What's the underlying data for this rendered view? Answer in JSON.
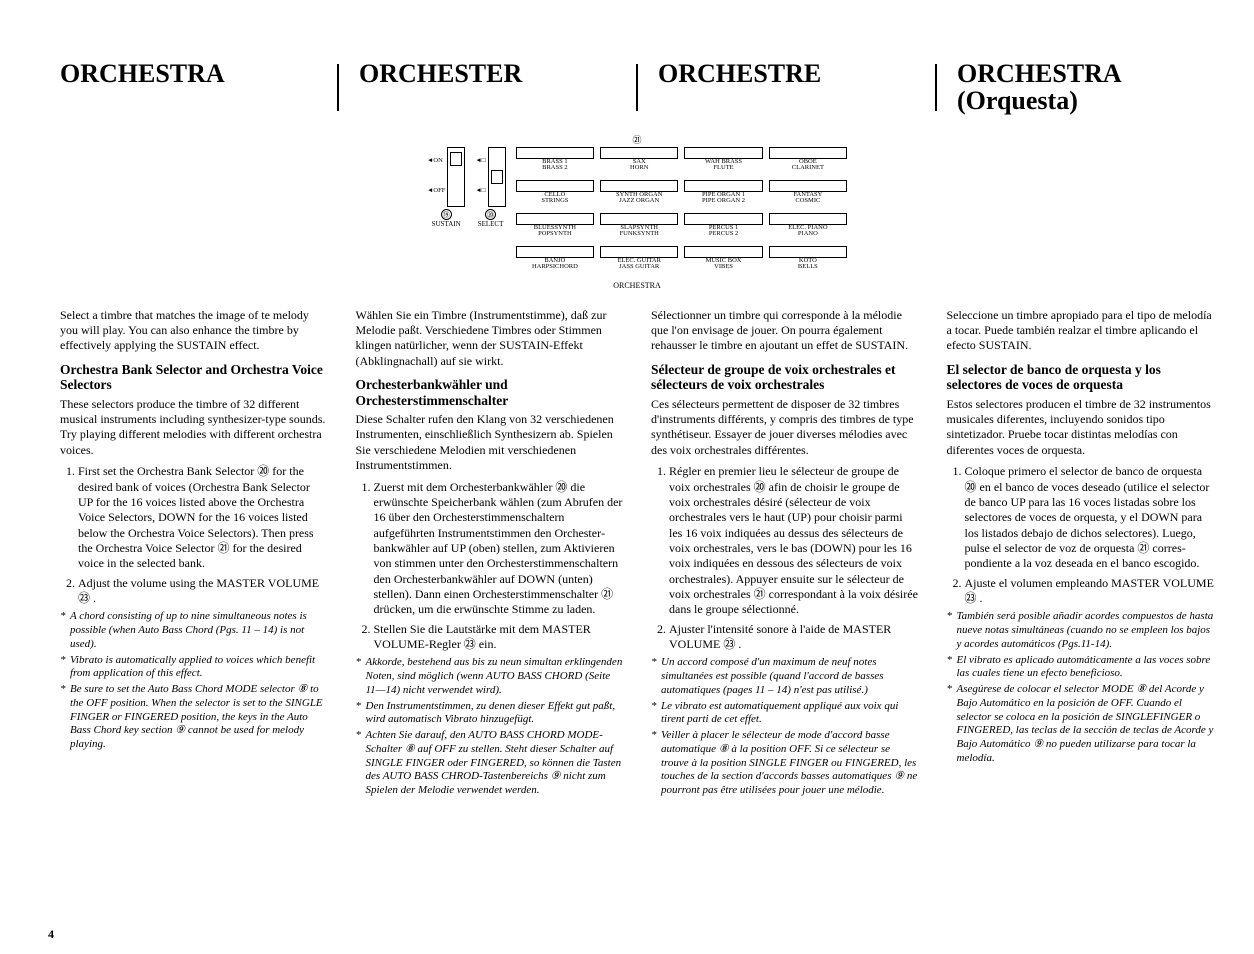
{
  "titles": {
    "en": "ORCHESTRA",
    "de": "ORCHESTER",
    "fr": "ORCHESTRE",
    "es": "ORCHESTRA\n(Orquesta)"
  },
  "diagram": {
    "top_marker": "㉑",
    "sustain": {
      "label": "SUSTAIN",
      "marker": "⑲",
      "on": "◄ON",
      "off": "◄OFF"
    },
    "select": {
      "label": "SELECT",
      "marker": "⑳",
      "up": "◄□",
      "dn": "◄□"
    },
    "caption": "ORCHESTRA",
    "rows": [
      [
        {
          "a": "BRASS 1",
          "b": "BRASS 2"
        },
        {
          "a": "SAX",
          "b": "HORN"
        },
        {
          "a": "WAH BRASS",
          "b": "FLUTE"
        },
        {
          "a": "OBOE",
          "b": "CLARINET"
        }
      ],
      [
        {
          "a": "CELLO",
          "b": "STRINGS"
        },
        {
          "a": "SYNTH ORGAN",
          "b": "JAZZ ORGAN"
        },
        {
          "a": "PIPE ORGAN 1",
          "b": "PIPE ORGAN 2"
        },
        {
          "a": "FANTASY",
          "b": "COSMIC"
        }
      ],
      [
        {
          "a": "BLUESSYNTH",
          "b": "POPSYNTH"
        },
        {
          "a": "SLAPSYNTH",
          "b": "FUNKSYNTH"
        },
        {
          "a": "PERCUS 1",
          "b": "PERCUS 2"
        },
        {
          "a": "ELEC. PIANO",
          "b": "PIANO"
        }
      ],
      [
        {
          "a": "BANJO",
          "b": "HARPSICHORD"
        },
        {
          "a": "ELEC. GUITAR",
          "b": "JASS GUITAR"
        },
        {
          "a": "MUSIC BOX",
          "b": "VIBES"
        },
        {
          "a": "KOTO",
          "b": "BELLS"
        }
      ]
    ]
  },
  "en": {
    "intro": "Select a timbre that matches the image of te melody you will play. You can also enhance the timbre by effectively applying the SUSTAIN effect.",
    "subhead": "Orchestra Bank Selector and Orchestra Voice Selectors",
    "para": "These selectors produce the timbre of 32 different musical instruments including synthesizer-type sounds. Try playing different melodies with different orchestra voices.",
    "ol": [
      "First set the Orchestra Bank Selector ⑳ for the desired bank of voices (Orchestra Bank Selector UP for the 16 voices listed above the Orchestra Voice Selectors, DOWN for the 16 voices listed below the Orchestra Voice Selectors). Then press the Orchestra Voice Selector ㉑ for the desired voice in the selected bank.",
      "Adjust the volume using the MASTER VOLUME ㉓ ."
    ],
    "notes": [
      "A chord consisting of up to nine simultaneous notes is possible (when Auto Bass Chord (Pgs. 11 – 14) is not used).",
      "Vibrato is automatically applied to voices which benefit from application of this effect.",
      "Be sure to set the Auto Bass Chord MODE selector ⑧ to the OFF position. When the selector is set to the SINGLE FINGER or FINGERED position, the keys in the Auto Bass Chord key section ⑨ cannot be used for melody playing."
    ]
  },
  "de": {
    "intro": "Wählen Sie ein Timbre (Instrumentstimme), daß zur Melodie paßt. Verschiedene Timbres oder Stimmen klingen natürlicher, wenn der SUSTAIN-Effekt (Abklingnachall) auf sie wirkt.",
    "subhead": "Orchesterbankwähler und Orchesterstimmenschalter",
    "para": "Diese Schalter rufen den Klang von 32 verschiedenen Instrumenten, einschließlich Synthesizern ab. Spielen Sie verschiedene Melodien mit verschiedenen Instrument­stimmen.",
    "ol": [
      "Zuerst mit dem Orchesterbankwähler ⑳ die erwünschte Speicherbank wählen (zum Abrufen der 16 über den Orchesterstimmenschaltern aufgeführten Instrumentstimmen den Orchester­bankwähler auf UP (oben) stellen, zum Aktivieren von stimmen unter den Orchesterstimmenschaltern den Orchesterbankwähler auf DOWN (unten) stellen). Dann einen Orchester­stimmenschalter ㉑ drücken, um die erwünschte Stimme zu laden.",
      "Stellen Sie die Lautstärke mit dem MASTER VOLUME-Regler ㉓ ein."
    ],
    "notes": [
      "Akkorde, bestehend aus bis zu neun simultan er­klingenden Noten, sind möglich (wenn AUTO BASS CHORD (Seite 11—14) nicht verwendet wird).",
      "Den Instrumentstimmen, zu denen dieser Effekt gut paßt, wird automatisch Vibrato hinzugefügt.",
      "Achten Sie darauf, den AUTO BASS CHORD MODE-Schalter ⑧ auf OFF zu stellen. Steht dieser Schalter auf SINGLE FINGER oder FINGERED, so können die Tasten des AUTO BASS CHROD-Tastenbereichs ⑨ nicht zum Spielen der Melodie verwendet werden."
    ]
  },
  "fr": {
    "intro": "Sélectionner un timbre qui corresponde à la mélodie que l'on envisage de jouer. On pourra également rehausser le timbre en ajoutant un effet de SUSTAIN.",
    "subhead": "Sélecteur de groupe de voix orchestrales et sélecteurs de voix orchestrales",
    "para": "Ces sélecteurs permettent de disposer de 32 timbres d'instruments différents, y compris des timbres de type synthétiseur. Essayer de jouer diverses mélodies avec des voix orchestrales différentes.",
    "ol": [
      "Régler en premier lieu le sélecteur de groupe de voix orchestrales ⑳ afin de choisir le groupe de voix orchestrales désiré (sélecteur de voix orchestrales vers le haut (UP) pour choisir parmi les 16 voix indiquées au dessus des sélecteurs de voix orchestrales, vers le bas (DOWN) pour les 16 voix indiquées en dessous des sélecteurs de voix orchestrales). Appuyer ensuite sur le sélecteur de voix orchestrales ㉑ correspondant à la voix désirée dans le groupe sélectionné.",
      "Ajuster l'intensité sonore à l'aide de MASTER VOLUME ㉓ ."
    ],
    "notes": [
      "Un accord composé d'un maximum de neuf notes simultanées est possible (quand l'accord de basses automatiques (pages 11 – 14) n'est pas utilisé.)",
      "Le vibrato est automatiquement appliqué aux voix qui tirent parti de cet effet.",
      "Veiller à placer le sélecteur de mode d'accord basse automatique ⑧ à la position OFF. Si ce sélecteur se trouve à la position SINGLE FINGER ou FINGERED, les touches de la section d'accords basses automatiques ⑨ ne pourront pas être utilisées pour jouer une mélodie."
    ]
  },
  "es": {
    "intro": "Seleccione un timbre apropiado para el tipo de melodía a tocar. Puede también realzar el timbre aplicando el efecto SUSTAIN.",
    "subhead": "El selector de banco de orquesta y los selectores de voces de orquesta",
    "para": "Estos selectores producen el timbre de 32 instrumentos musicales diferentes, incluyendo sonidos tipo sintetizador. Pruebe tocar distintas melodías con diferentes voces de orquesta.",
    "ol": [
      "Coloque primero el selector de banco de orquesta ⑳ en el banco de voces deseado (utilice el selector de banco UP para las 16 voces listadas sobre los selectores de voces de orquesta, y el DOWN para los listados debajo de dichos selectores). Luego, pulse el selector de voz de orquesta ㉑ corres­pondiente a la voz deseada en el banco escogido.",
      "Ajuste el volumen empleando MASTER VOLUME ㉓ ."
    ],
    "notes": [
      "También será posible añadir acordes compuestos de hasta nueve notas simultáneas (cuando no se empleen los bajos y acordes automáticos (Pgs.11-14).",
      "El vibrato es aplicado automáticamente a las voces sobre las cuales tiene un efecto beneficioso.",
      "Asegúrese de colocar el selector MODE ⑧ del Acorde y Bajo Automático en la posición de OFF. Cuando el selector se coloca en la posición de SINGLEFINGER o FINGERED, las teclas de la sección de teclas de Acorde y Bajo Automático ⑨ no pueden utilizarse para tocar la melodía."
    ]
  },
  "pagenum": "4"
}
